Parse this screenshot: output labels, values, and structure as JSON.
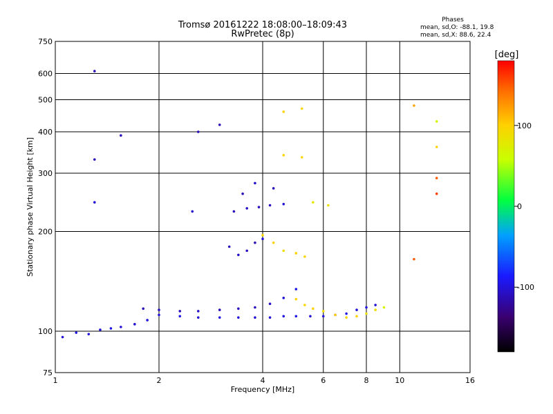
{
  "chart_data": {
    "type": "scatter",
    "title": "Tromsø 20161222 18:08:00–18:09:43",
    "subtitle": "RwPretec (8p)",
    "xlabel": "Frequency [MHz]",
    "ylabel": "Stationary phase Virtual Height [km]",
    "xscale": "log",
    "yscale": "log",
    "xlim": [
      1,
      16
    ],
    "ylim": [
      75,
      750
    ],
    "grid": true,
    "xticks": [
      1,
      2,
      4,
      6,
      8,
      10,
      16
    ],
    "yticks": [
      75,
      100,
      200,
      300,
      400,
      500,
      600,
      750
    ],
    "xgrid": [
      2,
      4,
      6,
      8,
      10
    ],
    "ygrid": [
      100,
      200,
      300,
      400,
      500,
      600
    ],
    "stats": {
      "header": "Phases",
      "line_o": "mean, sd,O: -88.1, 19.8",
      "line_x": "mean, sd,X:  88.6, 22.4"
    },
    "colorbar": {
      "label": "[deg]",
      "range": [
        -180,
        180
      ],
      "ticks": [
        -100,
        0,
        100
      ]
    },
    "series": [
      {
        "trace": "o-trace-low",
        "points": [
          [
            1.05,
            96,
            -100
          ],
          [
            1.15,
            99,
            -95
          ],
          [
            1.25,
            98,
            -100
          ],
          [
            1.35,
            101,
            -98
          ],
          [
            1.45,
            102,
            -95
          ],
          [
            1.55,
            103,
            -100
          ],
          [
            1.7,
            105,
            -102
          ],
          [
            1.85,
            108,
            -98
          ],
          [
            2.0,
            112,
            -100
          ],
          [
            2.3,
            111,
            -95
          ],
          [
            2.6,
            110,
            -100
          ],
          [
            3.0,
            110,
            -98
          ],
          [
            3.4,
            110,
            -100
          ],
          [
            3.8,
            110,
            -102
          ],
          [
            4.2,
            110,
            -100
          ],
          [
            4.6,
            111,
            -98
          ],
          [
            5.0,
            111,
            -95
          ],
          [
            5.5,
            111,
            -100
          ],
          [
            6.0,
            111,
            -98
          ],
          [
            6.5,
            112,
            -100
          ],
          [
            7.0,
            113,
            -95
          ],
          [
            7.5,
            116,
            -100
          ],
          [
            8.0,
            118,
            -98
          ],
          [
            8.5,
            120,
            -100
          ]
        ]
      },
      {
        "trace": "o-trace-high",
        "points": [
          [
            1.8,
            117,
            -110
          ],
          [
            2.0,
            116,
            -108
          ],
          [
            2.3,
            115,
            -110
          ],
          [
            2.6,
            115,
            -105
          ],
          [
            3.0,
            116,
            -110
          ],
          [
            3.4,
            117,
            -108
          ],
          [
            3.8,
            118,
            -110
          ],
          [
            4.2,
            121,
            -105
          ],
          [
            4.6,
            126,
            -100
          ],
          [
            5.0,
            134,
            -95
          ]
        ]
      },
      {
        "trace": "x-trace",
        "points": [
          [
            5.0,
            125,
            100
          ],
          [
            5.3,
            120,
            95
          ],
          [
            5.6,
            117,
            100
          ],
          [
            6.0,
            115,
            90
          ],
          [
            6.5,
            112,
            100
          ],
          [
            7.0,
            110,
            95
          ],
          [
            7.5,
            111,
            100
          ],
          [
            8.0,
            113,
            85
          ],
          [
            8.5,
            116,
            90
          ],
          [
            9.0,
            118,
            70
          ]
        ]
      },
      {
        "trace": "o-f-region",
        "points": [
          [
            3.2,
            180,
            -110
          ],
          [
            3.4,
            170,
            -105
          ],
          [
            3.6,
            175,
            -108
          ],
          [
            3.8,
            185,
            -110
          ],
          [
            4.0,
            190,
            -100
          ],
          [
            3.3,
            230,
            -110
          ],
          [
            3.6,
            235,
            -105
          ],
          [
            3.9,
            237,
            -110
          ],
          [
            4.2,
            240,
            -108
          ],
          [
            4.6,
            242,
            -100
          ],
          [
            3.5,
            260,
            -110
          ],
          [
            3.8,
            280,
            -105
          ],
          [
            4.3,
            270,
            -110
          ]
        ]
      },
      {
        "trace": "x-f-region",
        "points": [
          [
            4.0,
            195,
            95
          ],
          [
            4.3,
            185,
            100
          ],
          [
            4.6,
            175,
            90
          ],
          [
            5.0,
            172,
            100
          ],
          [
            5.3,
            168,
            95
          ],
          [
            4.6,
            460,
            100
          ],
          [
            5.2,
            470,
            95
          ],
          [
            4.6,
            340,
            100
          ],
          [
            5.2,
            335,
            95
          ],
          [
            5.6,
            245,
            80
          ],
          [
            6.2,
            240,
            85
          ]
        ]
      },
      {
        "trace": "isolated",
        "points": [
          [
            1.3,
            610,
            -110
          ],
          [
            1.3,
            330,
            -110
          ],
          [
            1.3,
            245,
            -100
          ],
          [
            1.55,
            390,
            -110
          ],
          [
            2.6,
            400,
            -110
          ],
          [
            2.5,
            230,
            -105
          ],
          [
            3.0,
            420,
            -110
          ],
          [
            11.0,
            480,
            120
          ],
          [
            11.0,
            165,
            150
          ],
          [
            12.8,
            430,
            70
          ],
          [
            12.8,
            360,
            100
          ],
          [
            12.8,
            290,
            150
          ],
          [
            12.8,
            260,
            160
          ]
        ]
      }
    ]
  }
}
